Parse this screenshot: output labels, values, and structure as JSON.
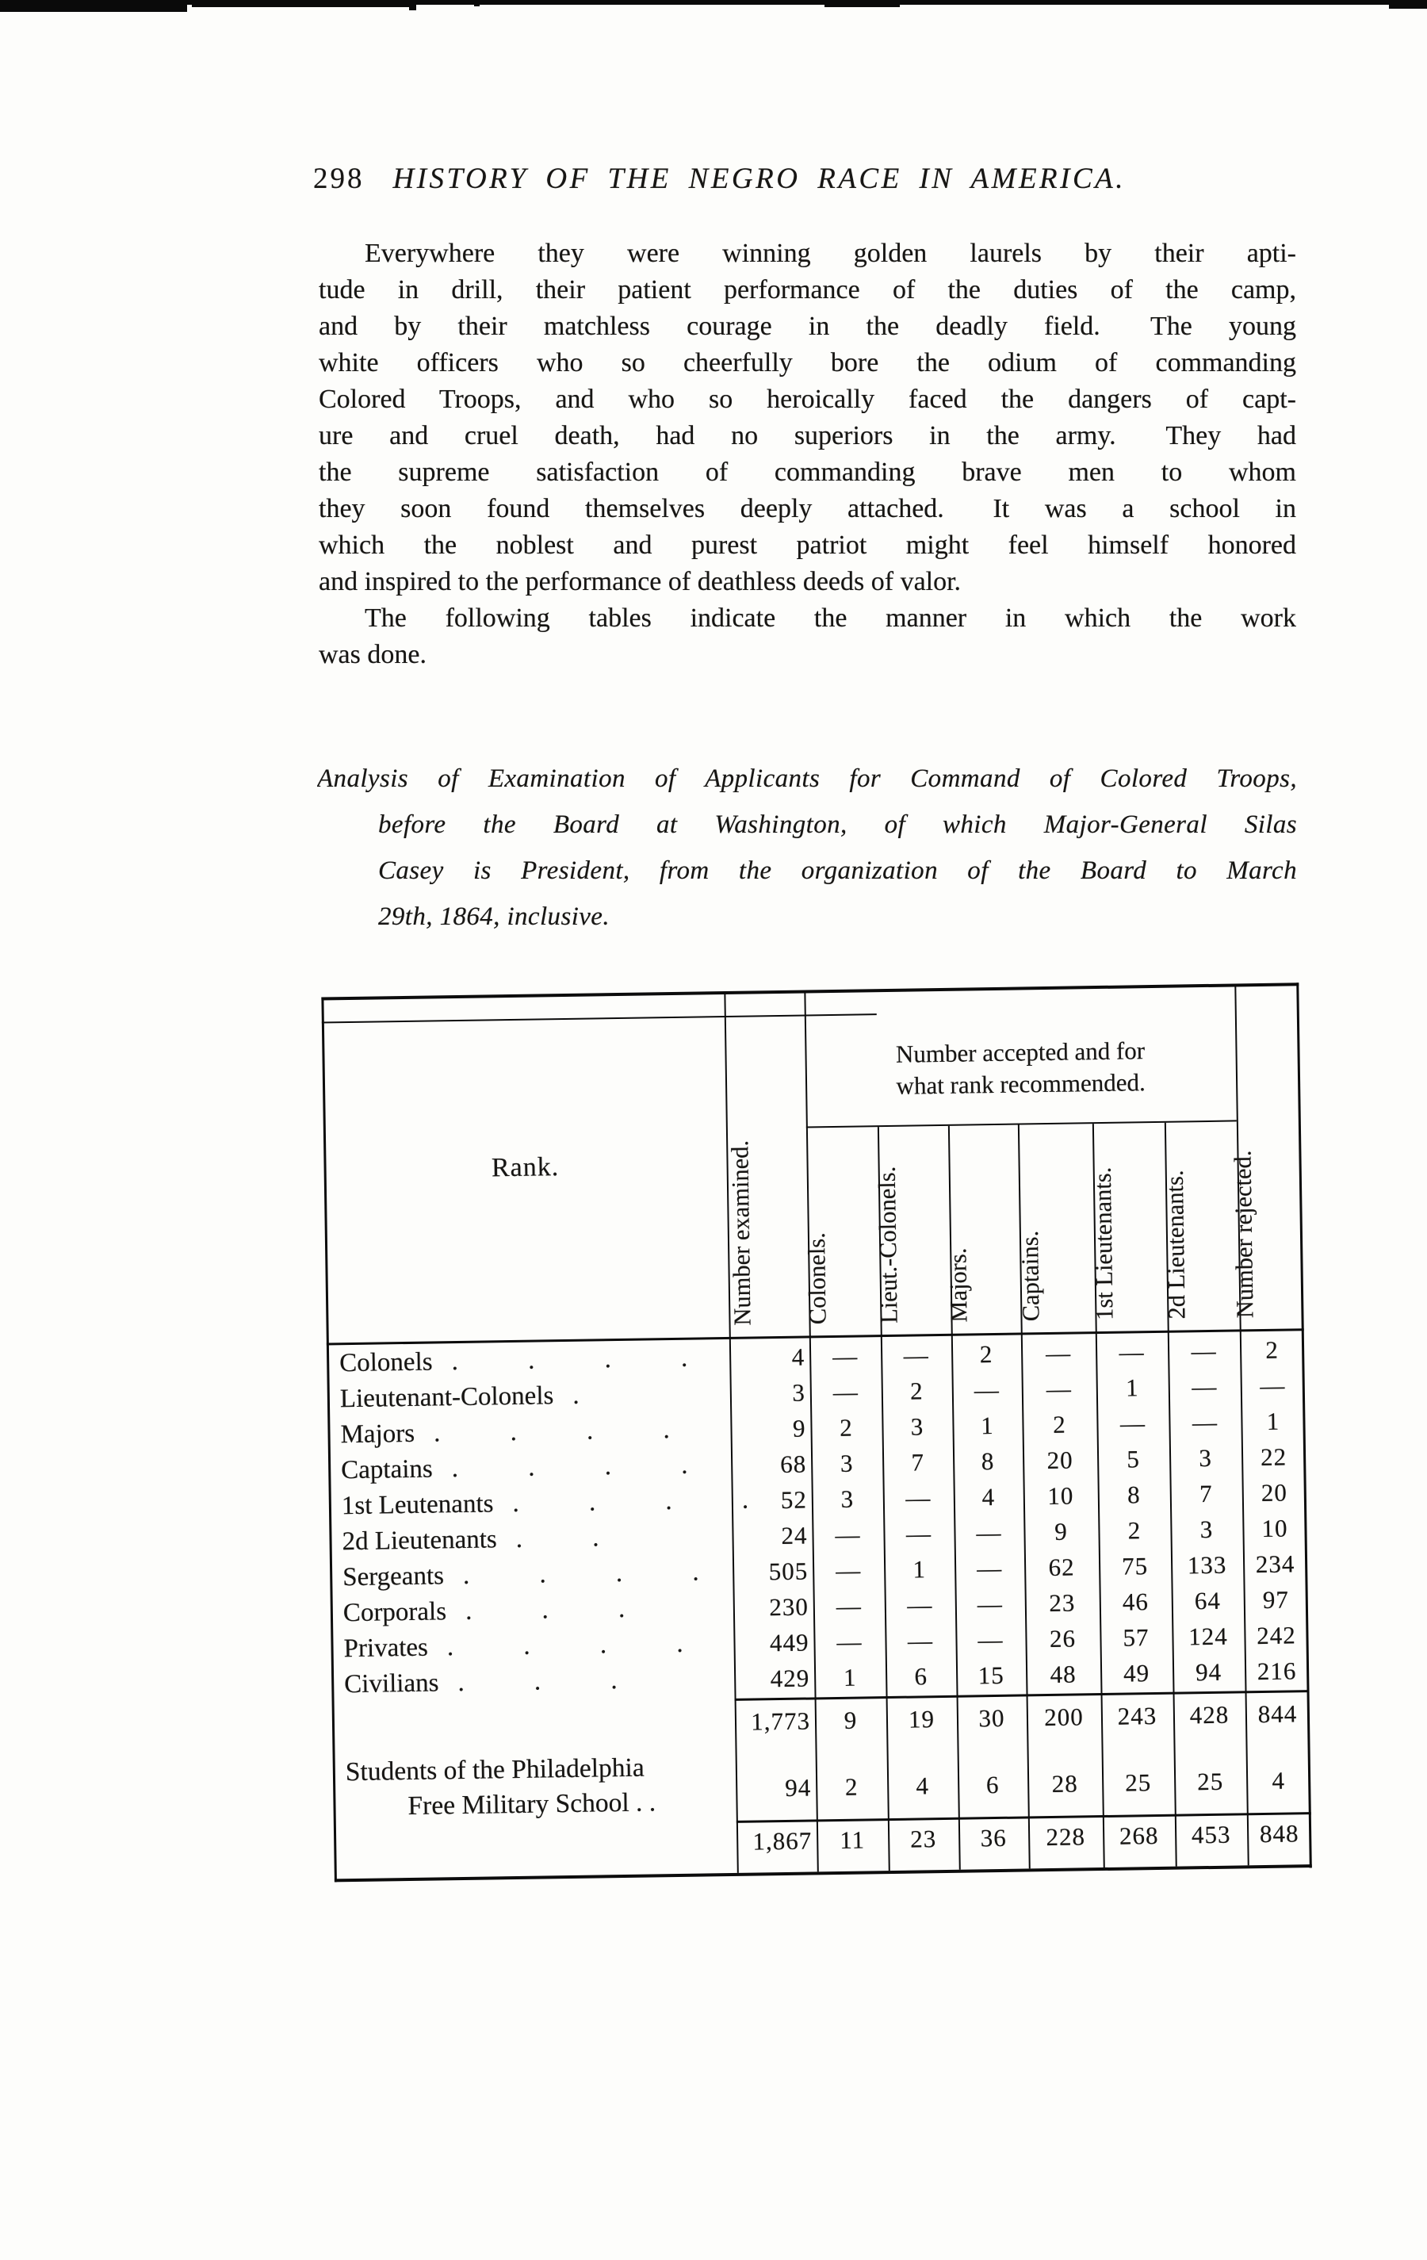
{
  "header": {
    "page_number": "298",
    "title": "HISTORY OF THE NEGRO RACE IN AMERICA."
  },
  "body": {
    "para1_lines": [
      "Everywhere they were winning golden laurels by their apti-",
      "tude in drill, their patient performance of the duties of the camp,",
      "and by their matchless courage in the deadly field.  The young",
      "white officers who so cheerfully bore the odium of commanding",
      "Colored Troops, and who so heroically faced the dangers of capt-",
      "ure and cruel death, had no superiors in the army.  They had",
      "the supreme satisfaction of commanding brave men to whom",
      "they soon found themselves deeply attached.  It was a school in",
      "which the noblest and purest patriot might feel himself honored",
      "and inspired to the performance of deathless deeds of valor."
    ],
    "para2_lines": [
      "The following tables indicate the manner in which the work",
      "was done."
    ]
  },
  "caption": {
    "lines": [
      "Analysis of Examination of Applicants for Command of Colored Troops,",
      "before the Board at Washington, of which Major-General Silas",
      "Casey is President, from the organization of the Board to March",
      "29th, 1864, inclusive."
    ]
  },
  "table": {
    "rank_header": "Rank.",
    "group_header_line1": "Number accepted and for",
    "group_header_line2": "what rank recommended.",
    "rotated_headers": {
      "examined": "Number examined.",
      "colonels": "Colonels.",
      "lieut_colonels": "Lieut.-Colonels.",
      "majors": "Majors.",
      "captains": "Captains.",
      "first_lieutenants": "1st Lieutenants.",
      "second_lieutenants": "2d Lieutenants.",
      "rejected": "Number rejected."
    },
    "rows": [
      {
        "label": "Colonels",
        "dots": ". . . .",
        "values": [
          "4",
          "—",
          "—",
          "2",
          "—",
          "—",
          "—",
          "2"
        ]
      },
      {
        "label": "Lieutenant-Colonels",
        "dots": ".",
        "values": [
          "3",
          "—",
          "2",
          "—",
          "—",
          "1",
          "—",
          "—"
        ]
      },
      {
        "label": "Majors",
        "dots": ". . . .",
        "values": [
          "9",
          "2",
          "3",
          "1",
          "2",
          "—",
          "—",
          "1"
        ]
      },
      {
        "label": "Captains",
        "dots": ". . . .",
        "values": [
          "68",
          "3",
          "7",
          "8",
          "20",
          "5",
          "3",
          "22"
        ]
      },
      {
        "label": "1st Leutenants",
        "dots": ". . . .",
        "values": [
          "52",
          "3",
          "—",
          "4",
          "10",
          "8",
          "7",
          "20"
        ]
      },
      {
        "label": "2d Lieutenants",
        "dots": ". .",
        "values": [
          "24",
          "—",
          "—",
          "—",
          "9",
          "2",
          "3",
          "10"
        ]
      },
      {
        "label": "Sergeants",
        "dots": ". . . .",
        "values": [
          "505",
          "—",
          "1",
          "—",
          "62",
          "75",
          "133",
          "234"
        ]
      },
      {
        "label": "Corporals",
        "dots": ". . .",
        "values": [
          "230",
          "—",
          "—",
          "—",
          "23",
          "46",
          "64",
          "97"
        ]
      },
      {
        "label": "Privates",
        "dots": ". . . .",
        "values": [
          "449",
          "—",
          "—",
          "—",
          "26",
          "57",
          "124",
          "242"
        ]
      },
      {
        "label": "Civilians",
        "dots": ". . .",
        "values": [
          "429",
          "1",
          "6",
          "15",
          "48",
          "49",
          "94",
          "216"
        ]
      }
    ],
    "subtotal_values": [
      "1,773",
      "9",
      "19",
      "30",
      "200",
      "243",
      "428",
      "844"
    ],
    "students_label_line1": "Students of the Philadelphia",
    "students_label_line2": "Free Military School . .",
    "students_values": [
      "94",
      "2",
      "4",
      "6",
      "28",
      "25",
      "25",
      "4"
    ],
    "total_values": [
      "1,867",
      "11",
      "23",
      "36",
      "228",
      "268",
      "453",
      "848"
    ]
  }
}
